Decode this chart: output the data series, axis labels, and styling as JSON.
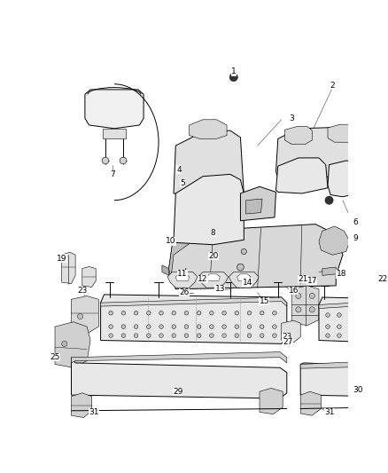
{
  "bg_color": "#ffffff",
  "fig_width": 4.38,
  "fig_height": 5.33,
  "dpi": 100,
  "line_color": "#000000",
  "label_fontsize": 6.5,
  "label_color": "#000000",
  "gray_light": "#e8e8e8",
  "gray_mid": "#cccccc",
  "gray_dark": "#999999",
  "leader_color": "#777777",
  "leader_lw": 0.5
}
